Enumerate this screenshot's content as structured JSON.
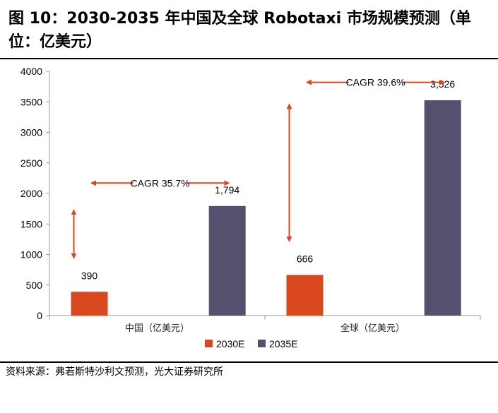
{
  "title": "图 10：2030-2035 年中国及全球 Robotaxi 市场规模预测（单位：亿美元）",
  "source": "资料来源：弗若斯特沙利文预测，光大证券研究所",
  "colors": {
    "series_2030": "#d9481f",
    "series_2035": "#55506e",
    "arrow": "#d9481f",
    "axis": "#999999"
  },
  "chart_data": {
    "type": "bar",
    "title": "图 10：2030-2035 年中国及全球 Robotaxi 市场规模预测（单位：亿美元）",
    "xlabel": "",
    "ylabel": "",
    "ylim": [
      0,
      4000
    ],
    "yticks": [
      0,
      500,
      1000,
      1500,
      2000,
      2500,
      3000,
      3500,
      4000
    ],
    "categories": [
      "中国（亿美元）",
      "全球（亿美元）"
    ],
    "series": [
      {
        "name": "2030E",
        "values": [
          390,
          666
        ],
        "labels": [
          "390",
          "666"
        ]
      },
      {
        "name": "2035E",
        "values": [
          1794,
          3526
        ],
        "labels": [
          "1,794",
          "3,526"
        ]
      }
    ],
    "annotations": [
      {
        "text": "CAGR 35.7%",
        "category": 0,
        "y": 2170
      },
      {
        "text": "CAGR 39.6%",
        "category": 1,
        "y": 3820
      }
    ],
    "legend": "bottom-center",
    "grid": false
  }
}
